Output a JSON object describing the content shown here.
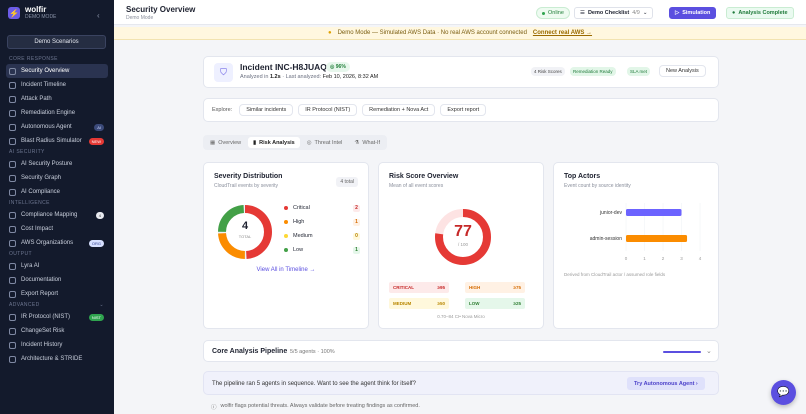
{
  "brand": {
    "name": "wolfir",
    "mode": "DEMO MODE"
  },
  "sidebar": {
    "scenarios": "Demo Scenarios",
    "sections": [
      {
        "title": "CORE RESPONSE",
        "items": [
          {
            "label": "Security Overview",
            "active": true
          },
          {
            "label": "Incident Timeline"
          },
          {
            "label": "Attack Path"
          },
          {
            "label": "Remediation Engine"
          },
          {
            "label": "Autonomous Agent",
            "badge": "AI"
          },
          {
            "label": "Blast Radius Simulator",
            "badge": "NEW"
          }
        ]
      },
      {
        "title": "AI SECURITY",
        "items": [
          {
            "label": "AI Security Posture"
          },
          {
            "label": "Security Graph"
          },
          {
            "label": "AI Compliance"
          }
        ]
      },
      {
        "title": "INTELLIGENCE",
        "items": [
          {
            "label": "Compliance Mapping",
            "badge": "4"
          },
          {
            "label": "Cost Impact"
          },
          {
            "label": "AWS Organizations",
            "badge": "ORG"
          }
        ]
      },
      {
        "title": "OUTPUT",
        "items": [
          {
            "label": "Lyra AI"
          },
          {
            "label": "Documentation"
          },
          {
            "label": "Export Report"
          }
        ]
      },
      {
        "title": "ADVANCED",
        "items": [
          {
            "label": "IR Protocol (NIST)",
            "badge": "NIST"
          },
          {
            "label": "ChangeSet Risk"
          },
          {
            "label": "Incident History"
          },
          {
            "label": "Architecture & STRIDE"
          }
        ]
      }
    ]
  },
  "header": {
    "title": "Security Overview",
    "subtitle": "Demo Mode",
    "online": "Online",
    "checklist": "Demo Checklist",
    "checklist_count": "4/9",
    "simulation": "Simulation",
    "analysis": "Analysis Complete"
  },
  "banner": {
    "text": "Demo Mode — Simulated AWS Data · No real AWS account connected",
    "link": "Connect real AWS →"
  },
  "incident": {
    "title": "Incident INC-H8JUAQ",
    "confidence": "96%",
    "analyzed": "Analyzed in",
    "analyzed_time": "1.2s",
    "last": "· Last analyzed:",
    "date": "Feb 10, 2026, 8:32 AM",
    "tags": [
      "4 Risk Scores",
      "Remediation Ready",
      "SLA met"
    ],
    "new_analysis": "New Analysis"
  },
  "explore": {
    "label": "Explore:",
    "buttons": [
      "Similar incidents",
      "IR Protocol (NIST)",
      "Remediation + Nova Act",
      "Export report"
    ]
  },
  "tabs": [
    "Overview",
    "Risk Analysis",
    "Threat Intel",
    "What-If"
  ],
  "severity": {
    "title": "Severity Distribution",
    "subtitle": "CloudTrail events by severity",
    "total_badge": "4 total",
    "total": "4",
    "total_label": "TOTAL",
    "rows": [
      {
        "label": "Critical",
        "count": "2",
        "color": "#e53935"
      },
      {
        "label": "High",
        "count": "1",
        "color": "#fb8c00"
      },
      {
        "label": "Medium",
        "count": "0",
        "color": "#fdd835"
      },
      {
        "label": "Low",
        "count": "1",
        "color": "#43a047"
      }
    ],
    "link": "View All in Timeline →"
  },
  "risk": {
    "title": "Risk Score Overview",
    "subtitle": "Mean of all event scores",
    "score": "77",
    "of": "/ 100",
    "score_fraction": 0.77,
    "chips": [
      {
        "label": "CRITICAL",
        "value": "≥95"
      },
      {
        "label": "HIGH",
        "value": "≥75"
      },
      {
        "label": "MEDIUM",
        "value": "≥50"
      },
      {
        "label": "LOW",
        "value": "≥25"
      }
    ],
    "footer": "0.70–84 CI• Nova Micro"
  },
  "actors": {
    "title": "Top Actors",
    "subtitle": "Event count by source identity",
    "footer": "Derived from CloudTrail actor / assumed role fields"
  },
  "pipeline": {
    "title": "Core Analysis Pipeline",
    "meta": "5/5 agents · 100%",
    "progress": 1.0
  },
  "cta": {
    "text": "The pipeline ran 5 agents in sequence. Want to see the agent think for itself?",
    "button": "Try Autonomous Agent ›"
  },
  "disclaimer": "wolfir flags potential threats. Always validate before treating findings as confirmed.",
  "chart_data": [
    {
      "type": "pie",
      "title": "Severity Distribution",
      "categories": [
        "Critical",
        "High",
        "Medium",
        "Low"
      ],
      "values": [
        2,
        1,
        0,
        1
      ]
    },
    {
      "type": "bar",
      "title": "Top Actors",
      "categories": [
        "junior-dev",
        "admin-session"
      ],
      "values": [
        3,
        3.3
      ],
      "xlim": [
        0,
        4
      ],
      "xticks": [
        "0",
        "1",
        "2",
        "3",
        "4"
      ],
      "colors": [
        "#6c63ff",
        "#fb8c00"
      ]
    }
  ]
}
